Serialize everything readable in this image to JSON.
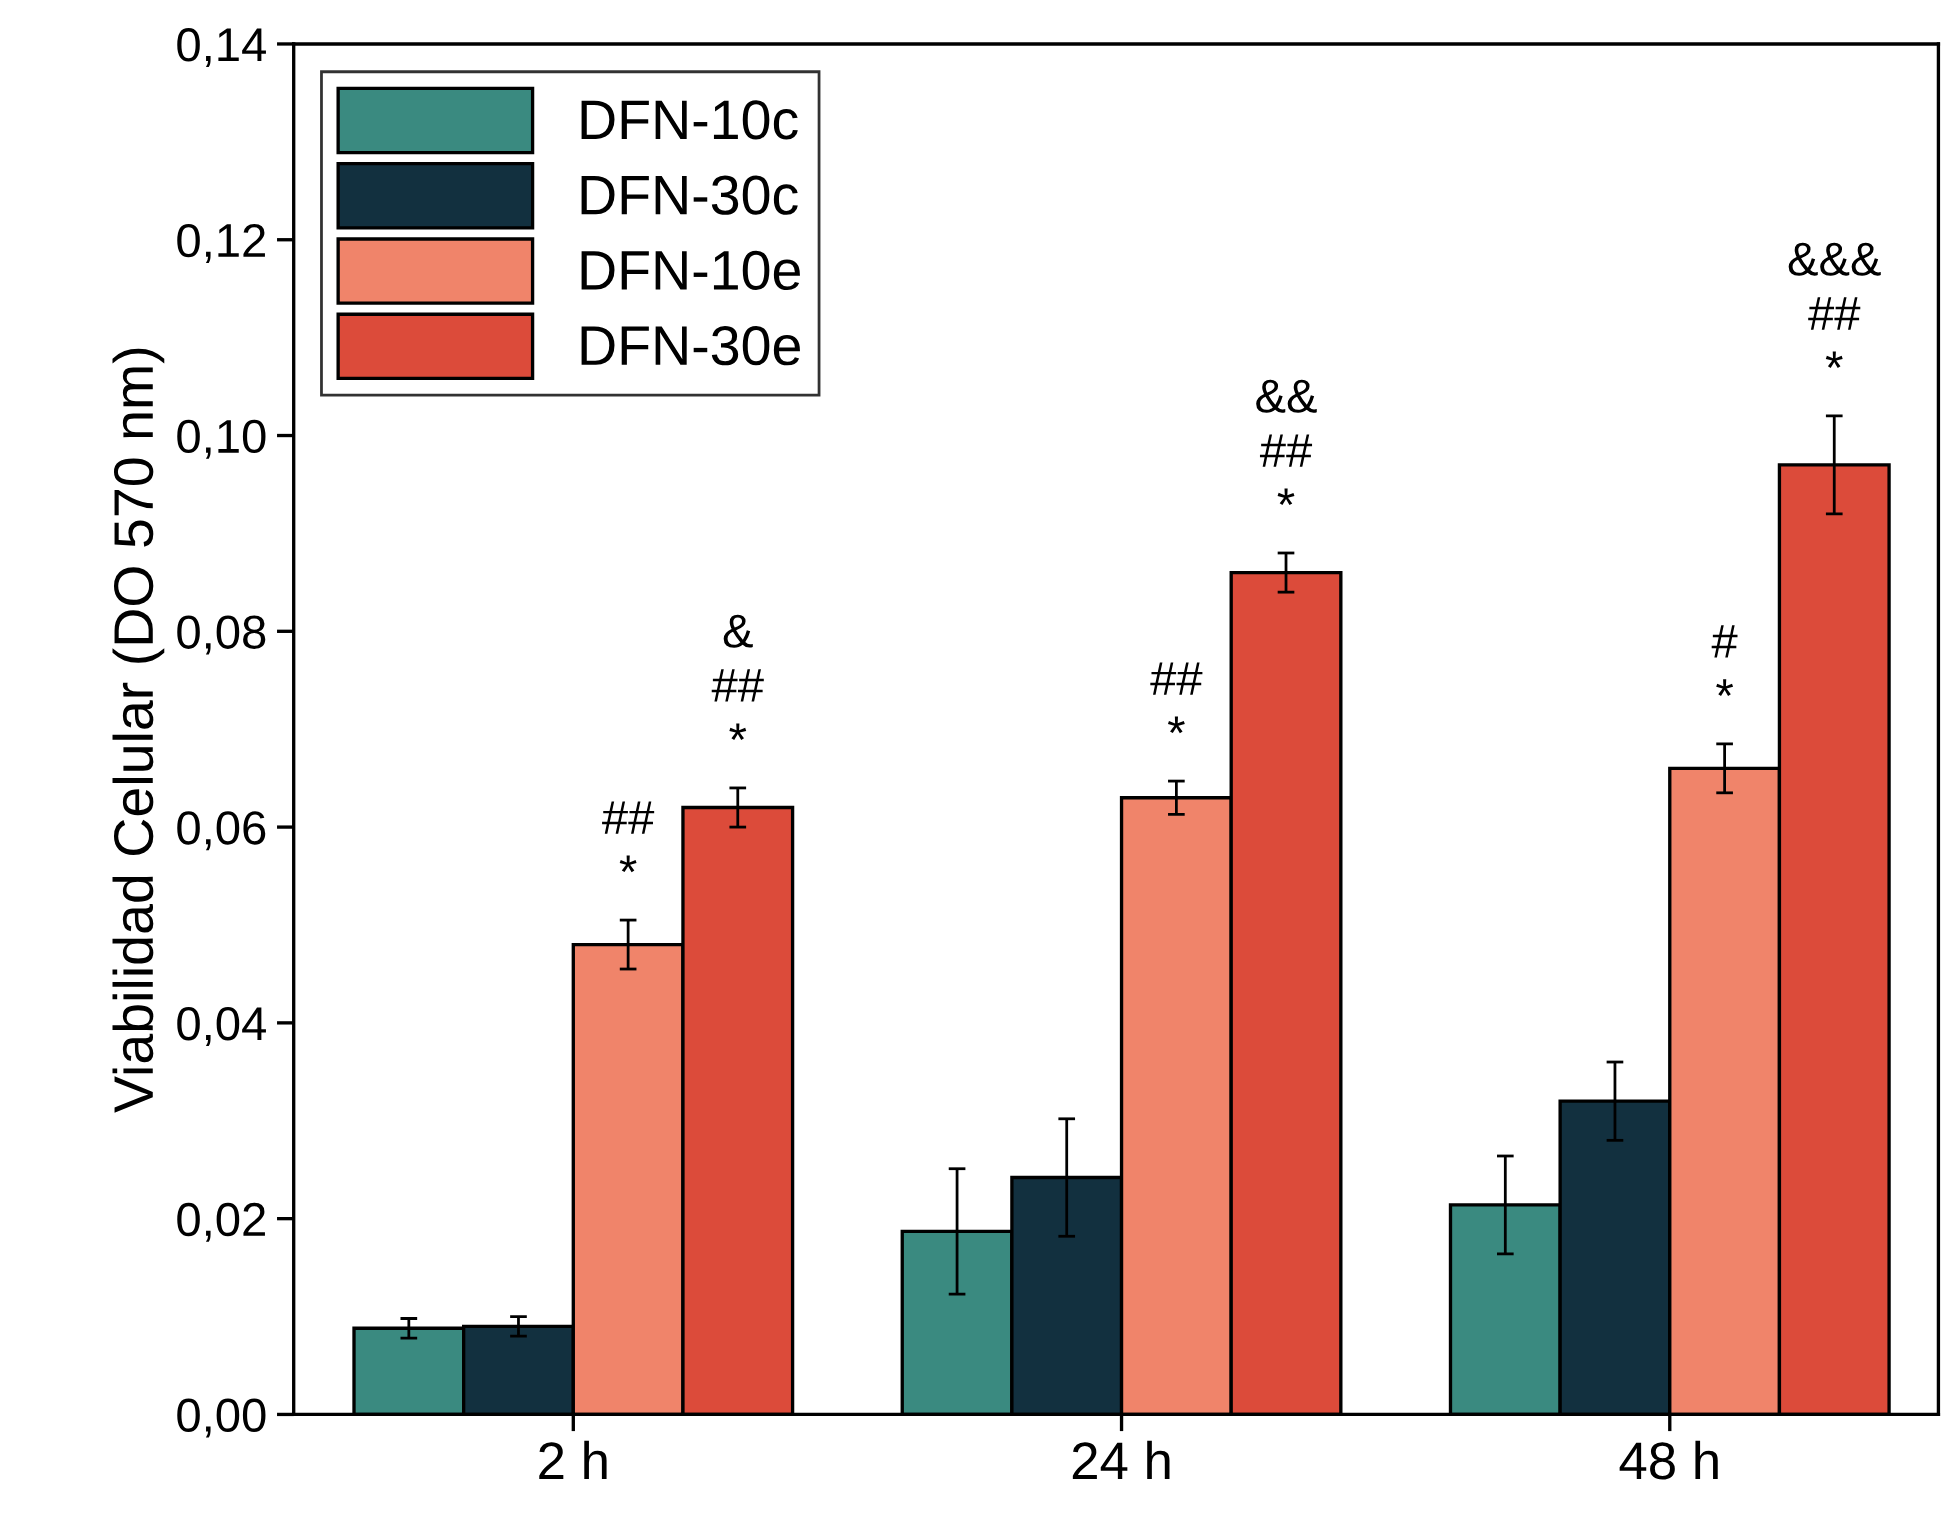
{
  "chart_data": {
    "type": "bar",
    "ylabel": "Viabilidad Celular (DO 570 nm)",
    "categories": [
      "2 h",
      "24 h",
      "48 h"
    ],
    "series": [
      {
        "name": "DFN-10c",
        "color": "#3a8a80",
        "values": [
          0.0088,
          0.0187,
          0.0214
        ],
        "errors": [
          0.001,
          0.0064,
          0.005
        ]
      },
      {
        "name": "DFN-30c",
        "color": "#12303f",
        "values": [
          0.009,
          0.0242,
          0.032
        ],
        "errors": [
          0.001,
          0.006,
          0.004
        ]
      },
      {
        "name": "DFN-10e",
        "color": "#f0846a",
        "values": [
          0.048,
          0.063,
          0.066
        ],
        "errors": [
          0.0025,
          0.0017,
          0.0025
        ],
        "value_labels": [
          "##\n*",
          "##\n*",
          "#\n*"
        ]
      },
      {
        "name": "DFN-30e",
        "color": "#dc4b3a",
        "values": [
          0.062,
          0.086,
          0.097
        ],
        "errors": [
          0.002,
          0.002,
          0.005
        ],
        "value_labels": [
          "&\n##\n*",
          "&&\n##\n*",
          "&&&\n##\n*"
        ]
      }
    ],
    "ylim": [
      0,
      0.14
    ],
    "yticks": [
      {
        "value": 0,
        "label": "0,00"
      },
      {
        "value": 0.02,
        "label": "0,02"
      },
      {
        "value": 0.04,
        "label": "0,04"
      },
      {
        "value": 0.06,
        "label": "0,06"
      },
      {
        "value": 0.08,
        "label": "0,08"
      },
      {
        "value": 0.1,
        "label": "0,10"
      },
      {
        "value": 0.12,
        "label": "0,12"
      },
      {
        "value": 0.14,
        "label": "0,14"
      }
    ],
    "grid": false,
    "legend": "top left"
  }
}
